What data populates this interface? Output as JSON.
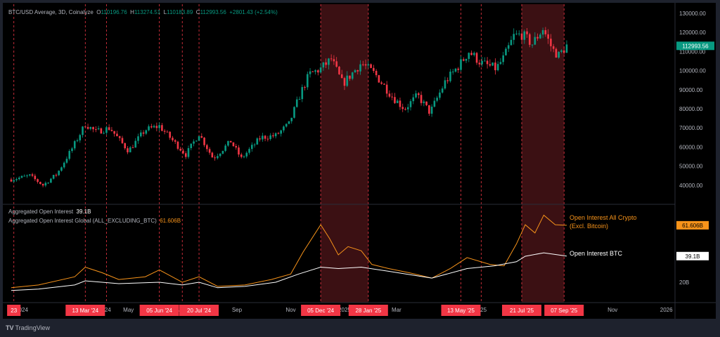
{
  "header": {
    "symbol": "BTC/USD Average, 3D, Coinalyze",
    "open_label": "O",
    "open": "110196.76",
    "high_label": "H",
    "high": "113274.51",
    "low_label": "L",
    "low": "110183.89",
    "close_label": "C",
    "close": "112993.56",
    "change": "+2801.43 (+2.54%)"
  },
  "oi_legend": {
    "oi_label": "Aggregated Open Interest",
    "oi_value": "39.1B",
    "global_label": "Aggregated Open Interest Global (ALL_EXCLUDING_BTC)",
    "global_value": "61.606B"
  },
  "footer": {
    "brand": "TradingView"
  },
  "colors": {
    "up": "#089981",
    "down": "#f23645",
    "orange": "#f7931a",
    "white": "#ffffff",
    "marker": "#f23645",
    "shade": "#4a1418",
    "bg": "#000000"
  },
  "chart_data": [
    {
      "type": "candlestick",
      "title": "BTC/USD Average, 3D, Coinalyze",
      "ylim": [
        35000,
        135000
      ],
      "yticks": [
        "130000.00",
        "120000.00",
        "110000.00",
        "100000.00",
        "90000.00",
        "80000.00",
        "70000.00",
        "60000.00",
        "50000.00",
        "40000.00"
      ],
      "last_price": "112993.56",
      "price_path": [
        [
          "2023-12-20",
          43000
        ],
        [
          "2024-01-10",
          45000
        ],
        [
          "2024-01-25",
          40000
        ],
        [
          "2024-02-10",
          46000
        ],
        [
          "2024-02-28",
          60000
        ],
        [
          "2024-03-13",
          72000
        ],
        [
          "2024-03-25",
          68000
        ],
        [
          "2024-04-10",
          70000
        ],
        [
          "2024-04-20",
          64000
        ],
        [
          "2024-05-01",
          58000
        ],
        [
          "2024-05-20",
          69000
        ],
        [
          "2024-06-05",
          71000
        ],
        [
          "2024-06-25",
          61000
        ],
        [
          "2024-07-05",
          56000
        ],
        [
          "2024-07-20",
          67000
        ],
        [
          "2024-08-05",
          54000
        ],
        [
          "2024-08-25",
          63000
        ],
        [
          "2024-09-06",
          54000
        ],
        [
          "2024-09-28",
          65000
        ],
        [
          "2024-10-15",
          66000
        ],
        [
          "2024-10-30",
          72000
        ],
        [
          "2024-11-12",
          88000
        ],
        [
          "2024-11-22",
          98000
        ],
        [
          "2024-12-05",
          101000
        ],
        [
          "2024-12-17",
          106000
        ],
        [
          "2024-12-30",
          93000
        ],
        [
          "2025-01-20",
          104000
        ],
        [
          "2025-02-05",
          98000
        ],
        [
          "2025-02-25",
          86000
        ],
        [
          "2025-03-10",
          80000
        ],
        [
          "2025-03-25",
          87000
        ],
        [
          "2025-04-08",
          78000
        ],
        [
          "2025-04-25",
          94000
        ],
        [
          "2025-05-13",
          104000
        ],
        [
          "2025-05-22",
          110000
        ],
        [
          "2025-06-05",
          104000
        ],
        [
          "2025-06-22",
          101000
        ],
        [
          "2025-07-01",
          107000
        ],
        [
          "2025-07-12",
          118000
        ],
        [
          "2025-07-21",
          119000
        ],
        [
          "2025-08-02",
          114000
        ],
        [
          "2025-08-14",
          122000
        ],
        [
          "2025-08-25",
          111000
        ],
        [
          "2025-09-01",
          108000
        ],
        [
          "2025-09-10",
          112993.56
        ]
      ]
    },
    {
      "type": "line",
      "ylim": [
        10,
        85
      ],
      "yticks": [
        "20B"
      ],
      "series": [
        {
          "name": "Open Interest All Crypto (Excl. Bitcoin)",
          "last": "61.606B",
          "color": "#f7931a",
          "points": [
            [
              "2023-12-20",
              16
            ],
            [
              "2024-01-20",
              18
            ],
            [
              "2024-03-01",
              24
            ],
            [
              "2024-03-13",
              31
            ],
            [
              "2024-04-01",
              27
            ],
            [
              "2024-04-20",
              22
            ],
            [
              "2024-05-20",
              24
            ],
            [
              "2024-06-05",
              29
            ],
            [
              "2024-07-01",
              20
            ],
            [
              "2024-07-20",
              24
            ],
            [
              "2024-08-10",
              17
            ],
            [
              "2024-09-10",
              18
            ],
            [
              "2024-10-10",
              22
            ],
            [
              "2024-11-01",
              26
            ],
            [
              "2024-11-15",
              42
            ],
            [
              "2024-12-05",
              62
            ],
            [
              "2024-12-15",
              52
            ],
            [
              "2024-12-25",
              40
            ],
            [
              "2025-01-05",
              46
            ],
            [
              "2025-01-20",
              43
            ],
            [
              "2025-02-01",
              33
            ],
            [
              "2025-02-20",
              30
            ],
            [
              "2025-03-15",
              27
            ],
            [
              "2025-04-10",
              23
            ],
            [
              "2025-05-01",
              30
            ],
            [
              "2025-05-20",
              38
            ],
            [
              "2025-06-15",
              33
            ],
            [
              "2025-07-01",
              32
            ],
            [
              "2025-07-15",
              48
            ],
            [
              "2025-07-25",
              62
            ],
            [
              "2025-08-05",
              56
            ],
            [
              "2025-08-15",
              69
            ],
            [
              "2025-08-28",
              62
            ],
            [
              "2025-09-10",
              61.6
            ]
          ]
        },
        {
          "name": "Open Interest BTC",
          "last": "39.1B",
          "color": "#ffffff",
          "points": [
            [
              "2023-12-20",
              14
            ],
            [
              "2024-01-20",
              15
            ],
            [
              "2024-03-01",
              18
            ],
            [
              "2024-03-13",
              21
            ],
            [
              "2024-04-20",
              19
            ],
            [
              "2024-06-05",
              20
            ],
            [
              "2024-07-01",
              18
            ],
            [
              "2024-07-20",
              20
            ],
            [
              "2024-08-10",
              16
            ],
            [
              "2024-09-10",
              17
            ],
            [
              "2024-10-15",
              20
            ],
            [
              "2024-11-10",
              26
            ],
            [
              "2024-12-05",
              31
            ],
            [
              "2024-12-25",
              30
            ],
            [
              "2025-01-20",
              31
            ],
            [
              "2025-02-20",
              28
            ],
            [
              "2025-04-10",
              23
            ],
            [
              "2025-05-20",
              30
            ],
            [
              "2025-06-20",
              32
            ],
            [
              "2025-07-15",
              35
            ],
            [
              "2025-07-25",
              39
            ],
            [
              "2025-08-15",
              41.5
            ],
            [
              "2025-09-10",
              39.1
            ]
          ]
        }
      ]
    }
  ],
  "x_axis": {
    "ticks": [
      [
        "2024-01-01",
        "2024"
      ],
      [
        "2024-04-01",
        "Apr '24"
      ],
      [
        "2024-05-01",
        "May"
      ],
      [
        "2024-07-01",
        "Jul"
      ],
      [
        "2024-09-01",
        "Sep"
      ],
      [
        "2024-11-01",
        "Nov"
      ],
      [
        "2025-01-01",
        "2025"
      ],
      [
        "2025-03-01",
        "Mar"
      ],
      [
        "2025-06-01",
        "Jun '25"
      ],
      [
        "2025-11-01",
        "Nov"
      ],
      [
        "2026-01-01",
        "2026"
      ]
    ]
  },
  "markers": [
    [
      "2023-12-23",
      "23"
    ],
    [
      "2024-03-13",
      "13 Mar '24"
    ],
    [
      "2024-06-05",
      "05 Jun '24"
    ],
    [
      "2024-07-20",
      "20 Jul '24"
    ],
    [
      "2024-12-05",
      "05 Dec '24"
    ],
    [
      "2025-01-28",
      "28 Jan '25"
    ],
    [
      "2025-05-13",
      "13 May '25"
    ],
    [
      "2025-07-21",
      "21 Jul '25"
    ],
    [
      "2025-09-07",
      "07 Sep '25"
    ]
  ],
  "extra_lines": [
    "2024-04-06",
    "2024-07-01",
    "2025-06-05"
  ],
  "shaded_ranges": [
    [
      "2024-12-05",
      "2025-01-28"
    ],
    [
      "2025-07-21",
      "2025-09-07"
    ]
  ]
}
